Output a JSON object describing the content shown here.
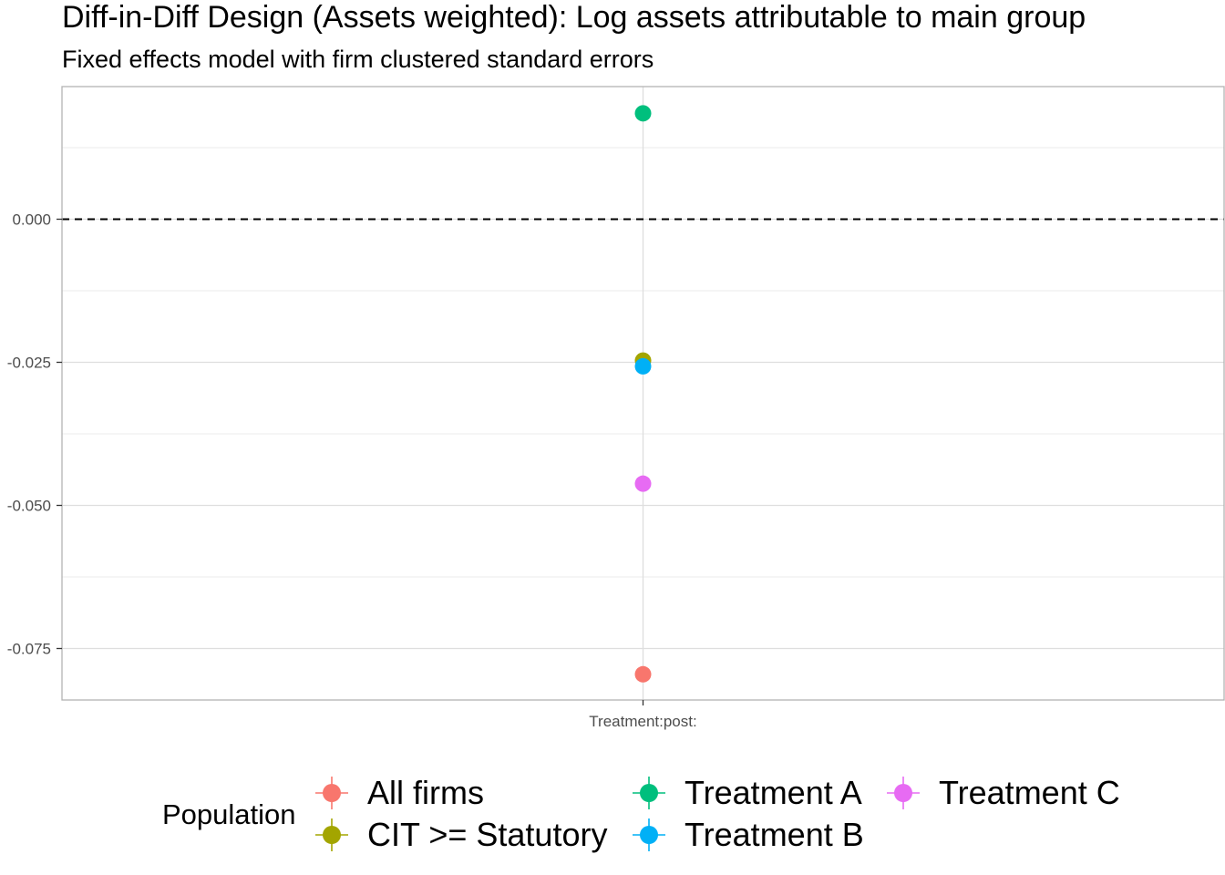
{
  "chart_data": {
    "type": "scatter",
    "title": "Diff-in-Diff Design (Assets weighted): Log assets attributable to main group",
    "subtitle": "Fixed effects model with firm clustered standard errors",
    "xlabel": "",
    "ylabel": "",
    "categories": [
      "Treatment:post:"
    ],
    "y_ticks": [
      0.0,
      -0.025,
      -0.05,
      -0.075
    ],
    "y_tick_labels": [
      "0.000",
      "-0.025",
      "-0.050",
      "-0.075"
    ],
    "ylim": [
      -0.084,
      0.023
    ],
    "reference_line": 0,
    "grid": true,
    "legend_title": "Population",
    "legend_position": "bottom",
    "series": [
      {
        "name": "All firms",
        "color": "#F8766D",
        "values": [
          -0.0795
        ]
      },
      {
        "name": "CIT >= Statutory",
        "color": "#A3A500",
        "values": [
          -0.0247
        ]
      },
      {
        "name": "Treatment A",
        "color": "#00BF7D",
        "values": [
          0.0185
        ]
      },
      {
        "name": "Treatment B",
        "color": "#00B0F6",
        "values": [
          -0.0257
        ]
      },
      {
        "name": "Treatment C",
        "color": "#E76BF3",
        "values": [
          -0.0462
        ]
      }
    ],
    "legend_order": [
      "All firms",
      "CIT >= Statutory",
      "Treatment A",
      "Treatment B",
      "Treatment C"
    ]
  }
}
